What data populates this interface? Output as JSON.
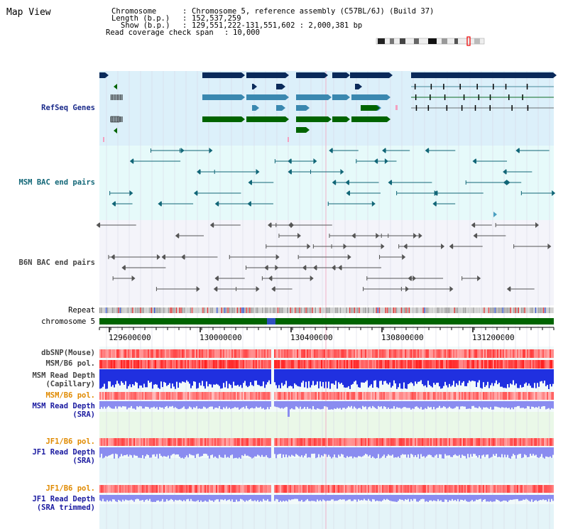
{
  "title": "Map View",
  "info": {
    "chromosome_label": "Chromosome",
    "chromosome_value": "Chromosome 5, reference assembly (C57BL/6J) (Build 37)",
    "length_label": "Length (b.p.)",
    "length_value": "152,537,259",
    "show_label": "Show (b.p.)",
    "show_value": "129,551,222-131,551,602 : 2,000,381 bp",
    "coverage_label": "Read coverage check span",
    "coverage_value": "10,000"
  },
  "tracks": {
    "refseq": "RefSeq Genes",
    "msm_bac": "MSM BAC end pairs",
    "b6n_bac": "B6N BAC end pairs",
    "repeat": "Repeat",
    "chromosome": "chromosome 5",
    "dbsnp": "dbSNP(Mouse)",
    "msm_b6_pol": "MSM/B6 pol.",
    "msm_depth_cap_1": "MSM Read Depth",
    "msm_depth_cap_2": "(Capillary)",
    "msm_b6_pol2": "MSM/B6 pol.",
    "msm_depth_sra_1": "MSM Read Depth",
    "msm_depth_sra_2": "(SRA)",
    "jf1_b6_pol": "JF1/B6 pol.",
    "jf1_depth_1": "JF1 Read Depth",
    "jf1_depth_2": "(SRA)",
    "jf1_b6_pol2": "JF1/B6 pol.",
    "jf1_trim_1": "JF1 Read Depth",
    "jf1_trim_2": "(SRA trimmed)"
  },
  "axis_ticks": [
    "129600000",
    "130000000",
    "130400000",
    "130800000",
    "131200000"
  ],
  "colors": {
    "refseq_bg": "#dcf0fa",
    "msm_bg": "#e6fafa",
    "b6n_bg": "#f4f4fa",
    "gene_dark": "#0a2a5a",
    "gene_mid": "#3a88b0",
    "gene_green": "#006400",
    "chromosome_green": "#006400",
    "depth_blue": "#2030e0",
    "depth_light": "#8a8cf0",
    "pol_red": "#e84040"
  }
}
